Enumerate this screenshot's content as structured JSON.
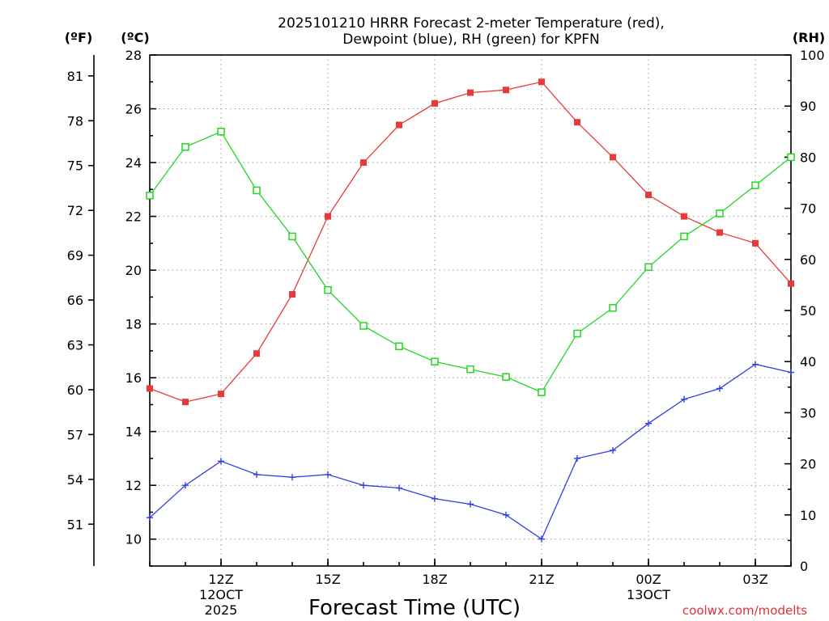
{
  "chart_data": {
    "type": "line",
    "title": [
      "2025101210 HRRR Forecast 2-meter Temperature (red),",
      "Dewpoint (blue), RH (green) for KPFN"
    ],
    "xlabel": "Forecast Time (UTC)",
    "units": {
      "fahrenheit": "(ºF)",
      "celsius": "(ºC)",
      "rh": "(RH)"
    },
    "x_hours_utc": [
      10,
      11,
      12,
      13,
      14,
      15,
      16,
      17,
      18,
      19,
      20,
      21,
      22,
      23,
      24,
      25,
      26,
      27,
      28
    ],
    "xlim": [
      10,
      28
    ],
    "x_ticks": [
      {
        "x": 12,
        "lines": [
          "12Z",
          "12OCT",
          "2025"
        ]
      },
      {
        "x": 15,
        "lines": [
          "15Z"
        ]
      },
      {
        "x": 18,
        "lines": [
          "18Z"
        ]
      },
      {
        "x": 21,
        "lines": [
          "21Z"
        ]
      },
      {
        "x": 24,
        "lines": [
          "00Z",
          "13OCT"
        ]
      },
      {
        "x": 27,
        "lines": [
          "03Z"
        ]
      }
    ],
    "ylim_celsius": [
      9,
      28
    ],
    "y_ticks_celsius": [
      10,
      12,
      14,
      16,
      18,
      20,
      22,
      24,
      26,
      28
    ],
    "y_ticks_fahrenheit": [
      51,
      54,
      57,
      60,
      63,
      66,
      69,
      72,
      75,
      78,
      81
    ],
    "ylim_rh": [
      0,
      100
    ],
    "y_ticks_rh": [
      0,
      10,
      20,
      30,
      40,
      50,
      60,
      70,
      80,
      90,
      100
    ],
    "series": [
      {
        "name": "Temperature",
        "color": "#e83a3a",
        "axis": "celsius",
        "marker": "filled-square",
        "values": [
          15.6,
          15.1,
          15.4,
          16.9,
          19.1,
          22.0,
          24.0,
          25.4,
          26.2,
          26.6,
          26.7,
          27.0,
          25.5,
          24.2,
          22.8,
          22.0,
          21.4,
          21.0,
          19.5
        ]
      },
      {
        "name": "Dewpoint",
        "color": "#2f3fe0",
        "axis": "celsius",
        "marker": "plus",
        "values": [
          10.8,
          12.0,
          12.9,
          12.4,
          12.3,
          12.4,
          12.0,
          11.9,
          11.5,
          11.3,
          10.9,
          10.0,
          13.0,
          13.3,
          14.3,
          15.2,
          15.6,
          16.5,
          16.2
        ]
      },
      {
        "name": "RH",
        "color": "#22d622",
        "axis": "rh",
        "marker": "open-square",
        "values": [
          72.5,
          82,
          85,
          73.5,
          64.5,
          54,
          47,
          43,
          40,
          38.5,
          37,
          34,
          45.5,
          50.5,
          58.5,
          64.5,
          69,
          74.5,
          80
        ]
      }
    ],
    "grid": true,
    "credit": "coolwx.com/modelts"
  }
}
